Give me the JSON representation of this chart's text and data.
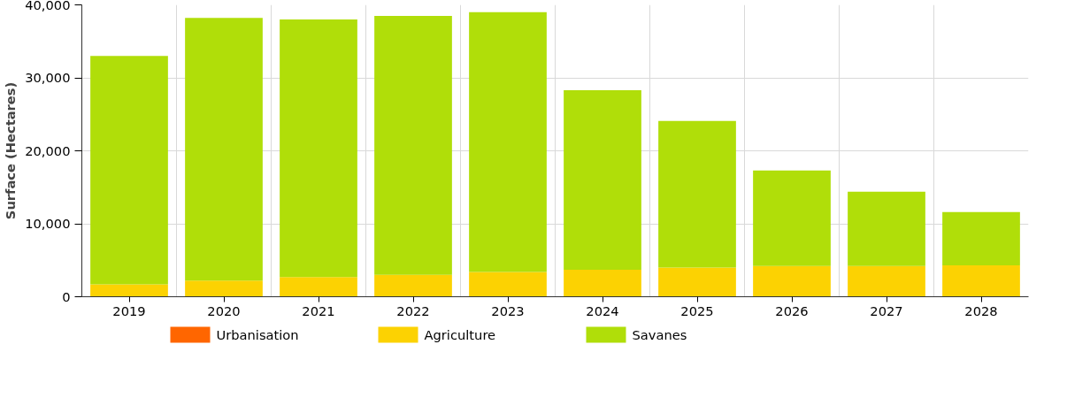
{
  "chart_data": {
    "type": "bar",
    "stacked": true,
    "ylabel": "Surface (Hectares)",
    "categories": [
      "2019",
      "2020",
      "2021",
      "2022",
      "2023",
      "2024",
      "2025",
      "2026",
      "2027",
      "2028"
    ],
    "series": [
      {
        "name": "Urbanisation",
        "color": "#ff6600",
        "values": [
          0,
          0,
          0,
          0,
          0,
          0,
          0,
          0,
          0,
          0
        ]
      },
      {
        "name": "Agriculture",
        "color": "#fcd202",
        "values": [
          1700,
          2200,
          2700,
          3000,
          3400,
          3700,
          4000,
          4200,
          4200,
          4300
        ]
      },
      {
        "name": "Savanes",
        "color": "#b0de09",
        "values": [
          31300,
          36000,
          35300,
          35500,
          35600,
          24600,
          20100,
          13100,
          10200,
          7300
        ]
      }
    ],
    "ylim": [
      0,
      40000
    ],
    "yticks": [
      {
        "value": 0,
        "label": "0"
      },
      {
        "value": 10000,
        "label": "10,000"
      },
      {
        "value": 20000,
        "label": "20,000"
      },
      {
        "value": 30000,
        "label": "30,000"
      },
      {
        "value": 40000,
        "label": "40,000"
      }
    ],
    "grid": true,
    "legend": "bottom"
  }
}
